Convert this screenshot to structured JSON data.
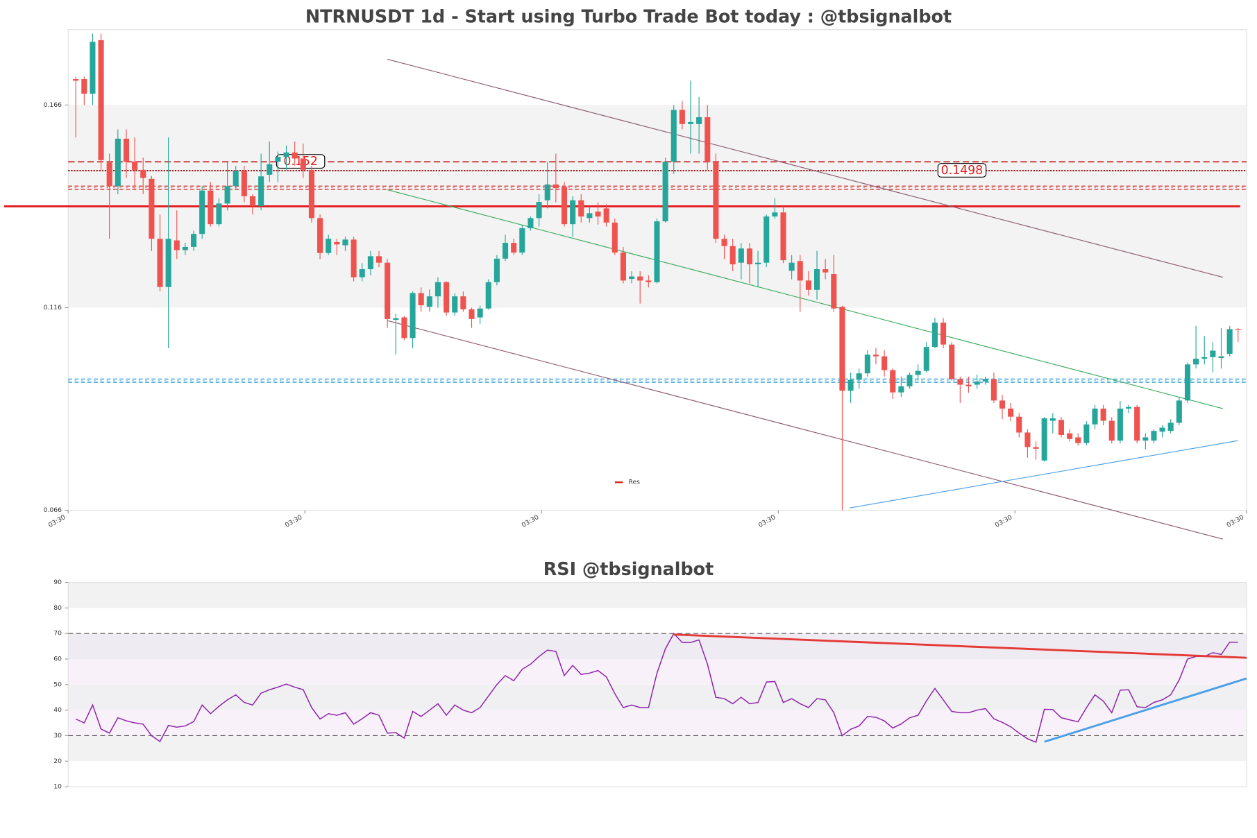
{
  "chart_data": [
    {
      "type": "candlestick",
      "title": "NTRNUSDT 1d - Start using Turbo Trade Bot today : @tbsignalbot",
      "open": [
        0.1724,
        0.1724,
        0.1688,
        0.182,
        0.1518,
        0.146,
        0.1577,
        0.152,
        0.15,
        0.1478,
        0.133,
        0.1211,
        0.1326,
        0.1302,
        0.131,
        0.1342,
        0.1449,
        0.1366,
        0.1417,
        0.146,
        0.1498,
        0.1435,
        0.1411,
        0.1488,
        0.152,
        0.1532,
        0.1543,
        0.1528,
        0.15,
        0.1381,
        0.1295,
        0.1322,
        0.1314,
        0.1328,
        0.1235,
        0.1255,
        0.1287,
        0.1271,
        0.113,
        0.1136,
        0.1085,
        0.1196,
        0.1162,
        0.1188,
        0.1223,
        0.1148,
        0.1188,
        0.1156,
        0.1136,
        0.1158,
        0.1223,
        0.1281,
        0.132,
        0.1296,
        0.1356,
        0.1381,
        0.1425,
        0.1464,
        0.1458,
        0.1366,
        0.1425,
        0.1381,
        0.1397,
        0.1405,
        0.137,
        0.1296,
        0.1231,
        0.1237,
        0.1227,
        0.1223,
        0.1373,
        0.152,
        0.1648,
        0.1613,
        0.1613,
        0.163,
        0.152,
        0.133,
        0.1312,
        0.1271,
        0.1306,
        0.1267,
        0.1271,
        0.1385,
        0.1395,
        0.1251,
        0.1275,
        0.1227,
        0.1204,
        0.1255,
        0.1243,
        0.1162,
        0.0955,
        0.0982,
        0.0998,
        0.1044,
        0.104,
        0.1006,
        0.0951,
        0.0966,
        0.0994,
        0.1004,
        0.1063,
        0.1123,
        0.1069,
        0.0984,
        0.097,
        0.097,
        0.0978,
        0.0984,
        0.0931,
        0.0911,
        0.0891,
        0.0852,
        0.0816,
        0.0783,
        0.0881,
        0.0883,
        0.085,
        0.084,
        0.0826,
        0.0872,
        0.0911,
        0.0881,
        0.0832,
        0.0911,
        0.0915,
        0.0832,
        0.0832,
        0.0854,
        0.0856,
        0.0876,
        0.0931,
        0.102,
        0.1034,
        0.1038,
        0.1036,
        0.1046,
        0.1107
      ],
      "high": [
        0.173,
        0.173,
        0.1836,
        0.1836,
        0.154,
        0.16,
        0.16,
        0.158,
        0.153,
        0.1485,
        0.139,
        0.158,
        0.14,
        0.132,
        0.135,
        0.146,
        0.147,
        0.143,
        0.152,
        0.151,
        0.151,
        0.144,
        0.154,
        0.157,
        0.1545,
        0.156,
        0.157,
        0.1565,
        0.151,
        0.139,
        0.134,
        0.133,
        0.1335,
        0.1335,
        0.127,
        0.13,
        0.13,
        0.128,
        0.1145,
        0.114,
        0.12,
        0.121,
        0.1205,
        0.1235,
        0.1225,
        0.1195,
        0.12,
        0.116,
        0.1165,
        0.123,
        0.129,
        0.134,
        0.133,
        0.1365,
        0.1385,
        0.144,
        0.152,
        0.154,
        0.147,
        0.1435,
        0.144,
        0.141,
        0.142,
        0.1415,
        0.138,
        0.131,
        0.125,
        0.125,
        0.124,
        0.138,
        0.153,
        0.166,
        0.167,
        0.172,
        0.168,
        0.166,
        0.154,
        0.134,
        0.133,
        0.132,
        0.132,
        0.13,
        0.139,
        0.143,
        0.141,
        0.129,
        0.129,
        0.125,
        0.13,
        0.128,
        0.129,
        0.1165,
        0.1,
        0.101,
        0.1055,
        0.106,
        0.1055,
        0.101,
        0.099,
        0.1,
        0.102,
        0.1075,
        0.1135,
        0.1135,
        0.1075,
        0.099,
        0.099,
        0.0995,
        0.099,
        0.1,
        0.0945,
        0.0925,
        0.09,
        0.086,
        0.083,
        0.089,
        0.09,
        0.089,
        0.086,
        0.085,
        0.088,
        0.092,
        0.092,
        0.089,
        0.093,
        0.092,
        0.092,
        0.085,
        0.086,
        0.087,
        0.0885,
        0.094,
        0.1025,
        0.1115,
        0.109,
        0.1075,
        0.111,
        0.1115,
        0.111
      ],
      "low": [
        0.158,
        0.166,
        0.166,
        0.15,
        0.133,
        0.144,
        0.148,
        0.145,
        0.144,
        0.13,
        0.12,
        0.106,
        0.128,
        0.129,
        0.13,
        0.133,
        0.136,
        0.136,
        0.14,
        0.145,
        0.142,
        0.139,
        0.14,
        0.147,
        0.147,
        0.15,
        0.151,
        0.148,
        0.137,
        0.128,
        0.129,
        0.129,
        0.13,
        0.1225,
        0.1225,
        0.124,
        0.126,
        0.111,
        0.1045,
        0.108,
        0.106,
        0.115,
        0.115,
        0.116,
        0.114,
        0.114,
        0.115,
        0.111,
        0.112,
        0.1155,
        0.1215,
        0.1275,
        0.129,
        0.129,
        0.135,
        0.136,
        0.1405,
        0.142,
        0.136,
        0.1335,
        0.137,
        0.137,
        0.1365,
        0.136,
        0.129,
        0.122,
        0.122,
        0.117,
        0.121,
        0.122,
        0.137,
        0.149,
        0.16,
        0.154,
        0.154,
        0.15,
        0.132,
        0.128,
        0.125,
        0.123,
        0.122,
        0.121,
        0.126,
        0.138,
        0.127,
        0.123,
        0.115,
        0.119,
        0.118,
        0.123,
        0.115,
        0.066,
        0.0925,
        0.096,
        0.099,
        0.102,
        0.099,
        0.0935,
        0.094,
        0.096,
        0.098,
        0.1,
        0.106,
        0.106,
        0.098,
        0.0925,
        0.095,
        0.096,
        0.097,
        0.0925,
        0.0885,
        0.088,
        0.084,
        0.079,
        0.0785,
        0.078,
        0.085,
        0.084,
        0.083,
        0.082,
        0.082,
        0.086,
        0.087,
        0.0825,
        0.0825,
        0.09,
        0.0825,
        0.081,
        0.0825,
        0.084,
        0.085,
        0.087,
        0.0925,
        0.101,
        0.102,
        0.1,
        0.101,
        0.104,
        0.1075
      ],
      "close": [
        0.172,
        0.1688,
        0.1816,
        0.1524,
        0.146,
        0.1577,
        0.152,
        0.15,
        0.148,
        0.133,
        0.1211,
        0.133,
        0.1302,
        0.131,
        0.1342,
        0.1449,
        0.1366,
        0.1417,
        0.146,
        0.1498,
        0.1435,
        0.1411,
        0.1484,
        0.1514,
        0.1532,
        0.1543,
        0.1528,
        0.15,
        0.1381,
        0.1295,
        0.133,
        0.1316,
        0.1328,
        0.1235,
        0.1255,
        0.1287,
        0.1271,
        0.1132,
        0.1134,
        0.1085,
        0.1196,
        0.1166,
        0.1188,
        0.1223,
        0.1148,
        0.1188,
        0.1156,
        0.1132,
        0.1158,
        0.1223,
        0.1281,
        0.132,
        0.1296,
        0.1356,
        0.1381,
        0.1421,
        0.1464,
        0.1455,
        0.1366,
        0.1425,
        0.1385,
        0.1393,
        0.1385,
        0.137,
        0.1296,
        0.1227,
        0.1237,
        0.1227,
        0.1223,
        0.1373,
        0.152,
        0.1648,
        0.1613,
        0.1618,
        0.163,
        0.152,
        0.133,
        0.1312,
        0.1267,
        0.1306,
        0.1267,
        0.1271,
        0.1385,
        0.1395,
        0.1277,
        0.1271,
        0.1227,
        0.1204,
        0.1255,
        0.1247,
        0.1158,
        0.0955,
        0.0982,
        0.0998,
        0.1044,
        0.104,
        0.1006,
        0.0951,
        0.0966,
        0.0994,
        0.1004,
        0.1063,
        0.1123,
        0.1069,
        0.0984,
        0.097,
        0.0966,
        0.0978,
        0.0984,
        0.0931,
        0.0911,
        0.0891,
        0.0852,
        0.0816,
        0.0812,
        0.0887,
        0.0887,
        0.0846,
        0.0836,
        0.0826,
        0.0872,
        0.0911,
        0.0881,
        0.0832,
        0.0911,
        0.0915,
        0.0832,
        0.084,
        0.0856,
        0.0864,
        0.0876,
        0.0931,
        0.102,
        0.1034,
        0.1038,
        0.1054,
        0.104,
        0.1107,
        0.1105
      ],
      "up_color": "#26a69a",
      "down_color": "#ef5350",
      "xlim": [
        -0.9,
        139.0
      ],
      "xticks": [
        {
          "value": -0.9,
          "label": "03:30"
        },
        {
          "value": 27.2,
          "label": "03:30"
        },
        {
          "value": 55.3,
          "label": "03:30"
        },
        {
          "value": 83.4,
          "label": "03:30"
        },
        {
          "value": 111.5,
          "label": "03:30"
        },
        {
          "value": 139.0,
          "label": "03:30"
        }
      ],
      "ylim": [
        0.066,
        0.1846
      ],
      "yticks": [
        0.066,
        0.116,
        0.166
      ],
      "band": {
        "range": [
          0.116,
          0.166
        ],
        "color": "#f3f3f3"
      },
      "levels": [
        {
          "value": 0.141,
          "style": "solid",
          "color": "#e31a1c",
          "name": "Res"
        },
        {
          "value": 0.152,
          "style": "dashed",
          "color": "#c62828",
          "labeled": true
        },
        {
          "value": 0.1498,
          "style": "dotted",
          "color": "#8b0000",
          "labeled": true
        },
        {
          "value": 0.1456,
          "style": "double",
          "color": "#d32f2f"
        },
        {
          "value": 0.098,
          "style": "double",
          "color": "#2a9fd6"
        }
      ],
      "trendlines": [
        {
          "x": [
            37,
            136.2
          ],
          "y": [
            0.1773,
            0.1235
          ],
          "color": "#8d5a73"
        },
        {
          "x": [
            37,
            136.2
          ],
          "y": [
            0.1128,
            0.0589
          ],
          "color": "#8d5a73"
        },
        {
          "x": [
            37,
            136.2
          ],
          "y": [
            0.1451,
            0.0911
          ],
          "color": "#3aaa5a"
        },
        {
          "x": [
            91.9,
            138
          ],
          "y": [
            0.0666,
            0.0832
          ],
          "color": "#4a9fe8"
        }
      ]
    },
    {
      "type": "line",
      "title": "RSI @tbsignalbot",
      "values": [
        36.5,
        35,
        42,
        32.6,
        31,
        37,
        35.8,
        35,
        34.5,
        30,
        27.7,
        34,
        33.3,
        33.8,
        35.5,
        42,
        38.6,
        41.5,
        44,
        46,
        43,
        42,
        46.6,
        48,
        49,
        50.2,
        49,
        48,
        41,
        36.5,
        38.6,
        38,
        39,
        34.5,
        36.6,
        39,
        38,
        31,
        31.2,
        29,
        39.5,
        37.5,
        40,
        42.5,
        38,
        42,
        40,
        39,
        41,
        45.5,
        50,
        53.5,
        51.5,
        56,
        58,
        61,
        63.5,
        63,
        53.5,
        57.5,
        54,
        54.5,
        55.5,
        53,
        46.5,
        41,
        42,
        41,
        41,
        54.5,
        64,
        70,
        66.5,
        66.5,
        67.5,
        58,
        45,
        44.5,
        42.5,
        45,
        42.5,
        43,
        51,
        51.2,
        43,
        44.5,
        42.5,
        41,
        44.5,
        44,
        39,
        30,
        32.5,
        33.8,
        37.5,
        37.2,
        35.8,
        33,
        34.6,
        37,
        38,
        43.6,
        48.5,
        44,
        39.5,
        39,
        39,
        40,
        40.6,
        36.6,
        35.2,
        33.5,
        31,
        28.8,
        27.4,
        40.3,
        40.2,
        37,
        36.2,
        35.4,
        41,
        46,
        43.5,
        39,
        47.8,
        48,
        41.3,
        41,
        43,
        44,
        46,
        51.8,
        60,
        61,
        61,
        62.5,
        61.8,
        66.6,
        66.6
      ],
      "color": "#8e24aa",
      "xlim": [
        -0.9,
        139.0
      ],
      "ylim": [
        10,
        90
      ],
      "yticks": [
        10,
        20,
        30,
        40,
        50,
        60,
        70,
        80,
        90
      ],
      "bands": [
        {
          "range": [
            80,
            90
          ],
          "color": "#f2f2f2"
        },
        {
          "range": [
            60,
            70
          ],
          "color": "#eeecf2"
        },
        {
          "range": [
            50,
            60
          ],
          "color": "#f9f1f9"
        },
        {
          "range": [
            40,
            50
          ],
          "color": "#f0f0f2"
        },
        {
          "range": [
            30,
            40
          ],
          "color": "#f9f1f9"
        },
        {
          "range": [
            20,
            30
          ],
          "color": "#f2f2f2"
        }
      ],
      "hlines": [
        30,
        70
      ],
      "trendlines": [
        {
          "x": [
            71,
            139
          ],
          "y": [
            69.6,
            60.5
          ],
          "color": "#e53935"
        },
        {
          "x": [
            115,
            139
          ],
          "y": [
            27.6,
            52.4
          ],
          "color": "#4a9fe8"
        }
      ]
    }
  ]
}
